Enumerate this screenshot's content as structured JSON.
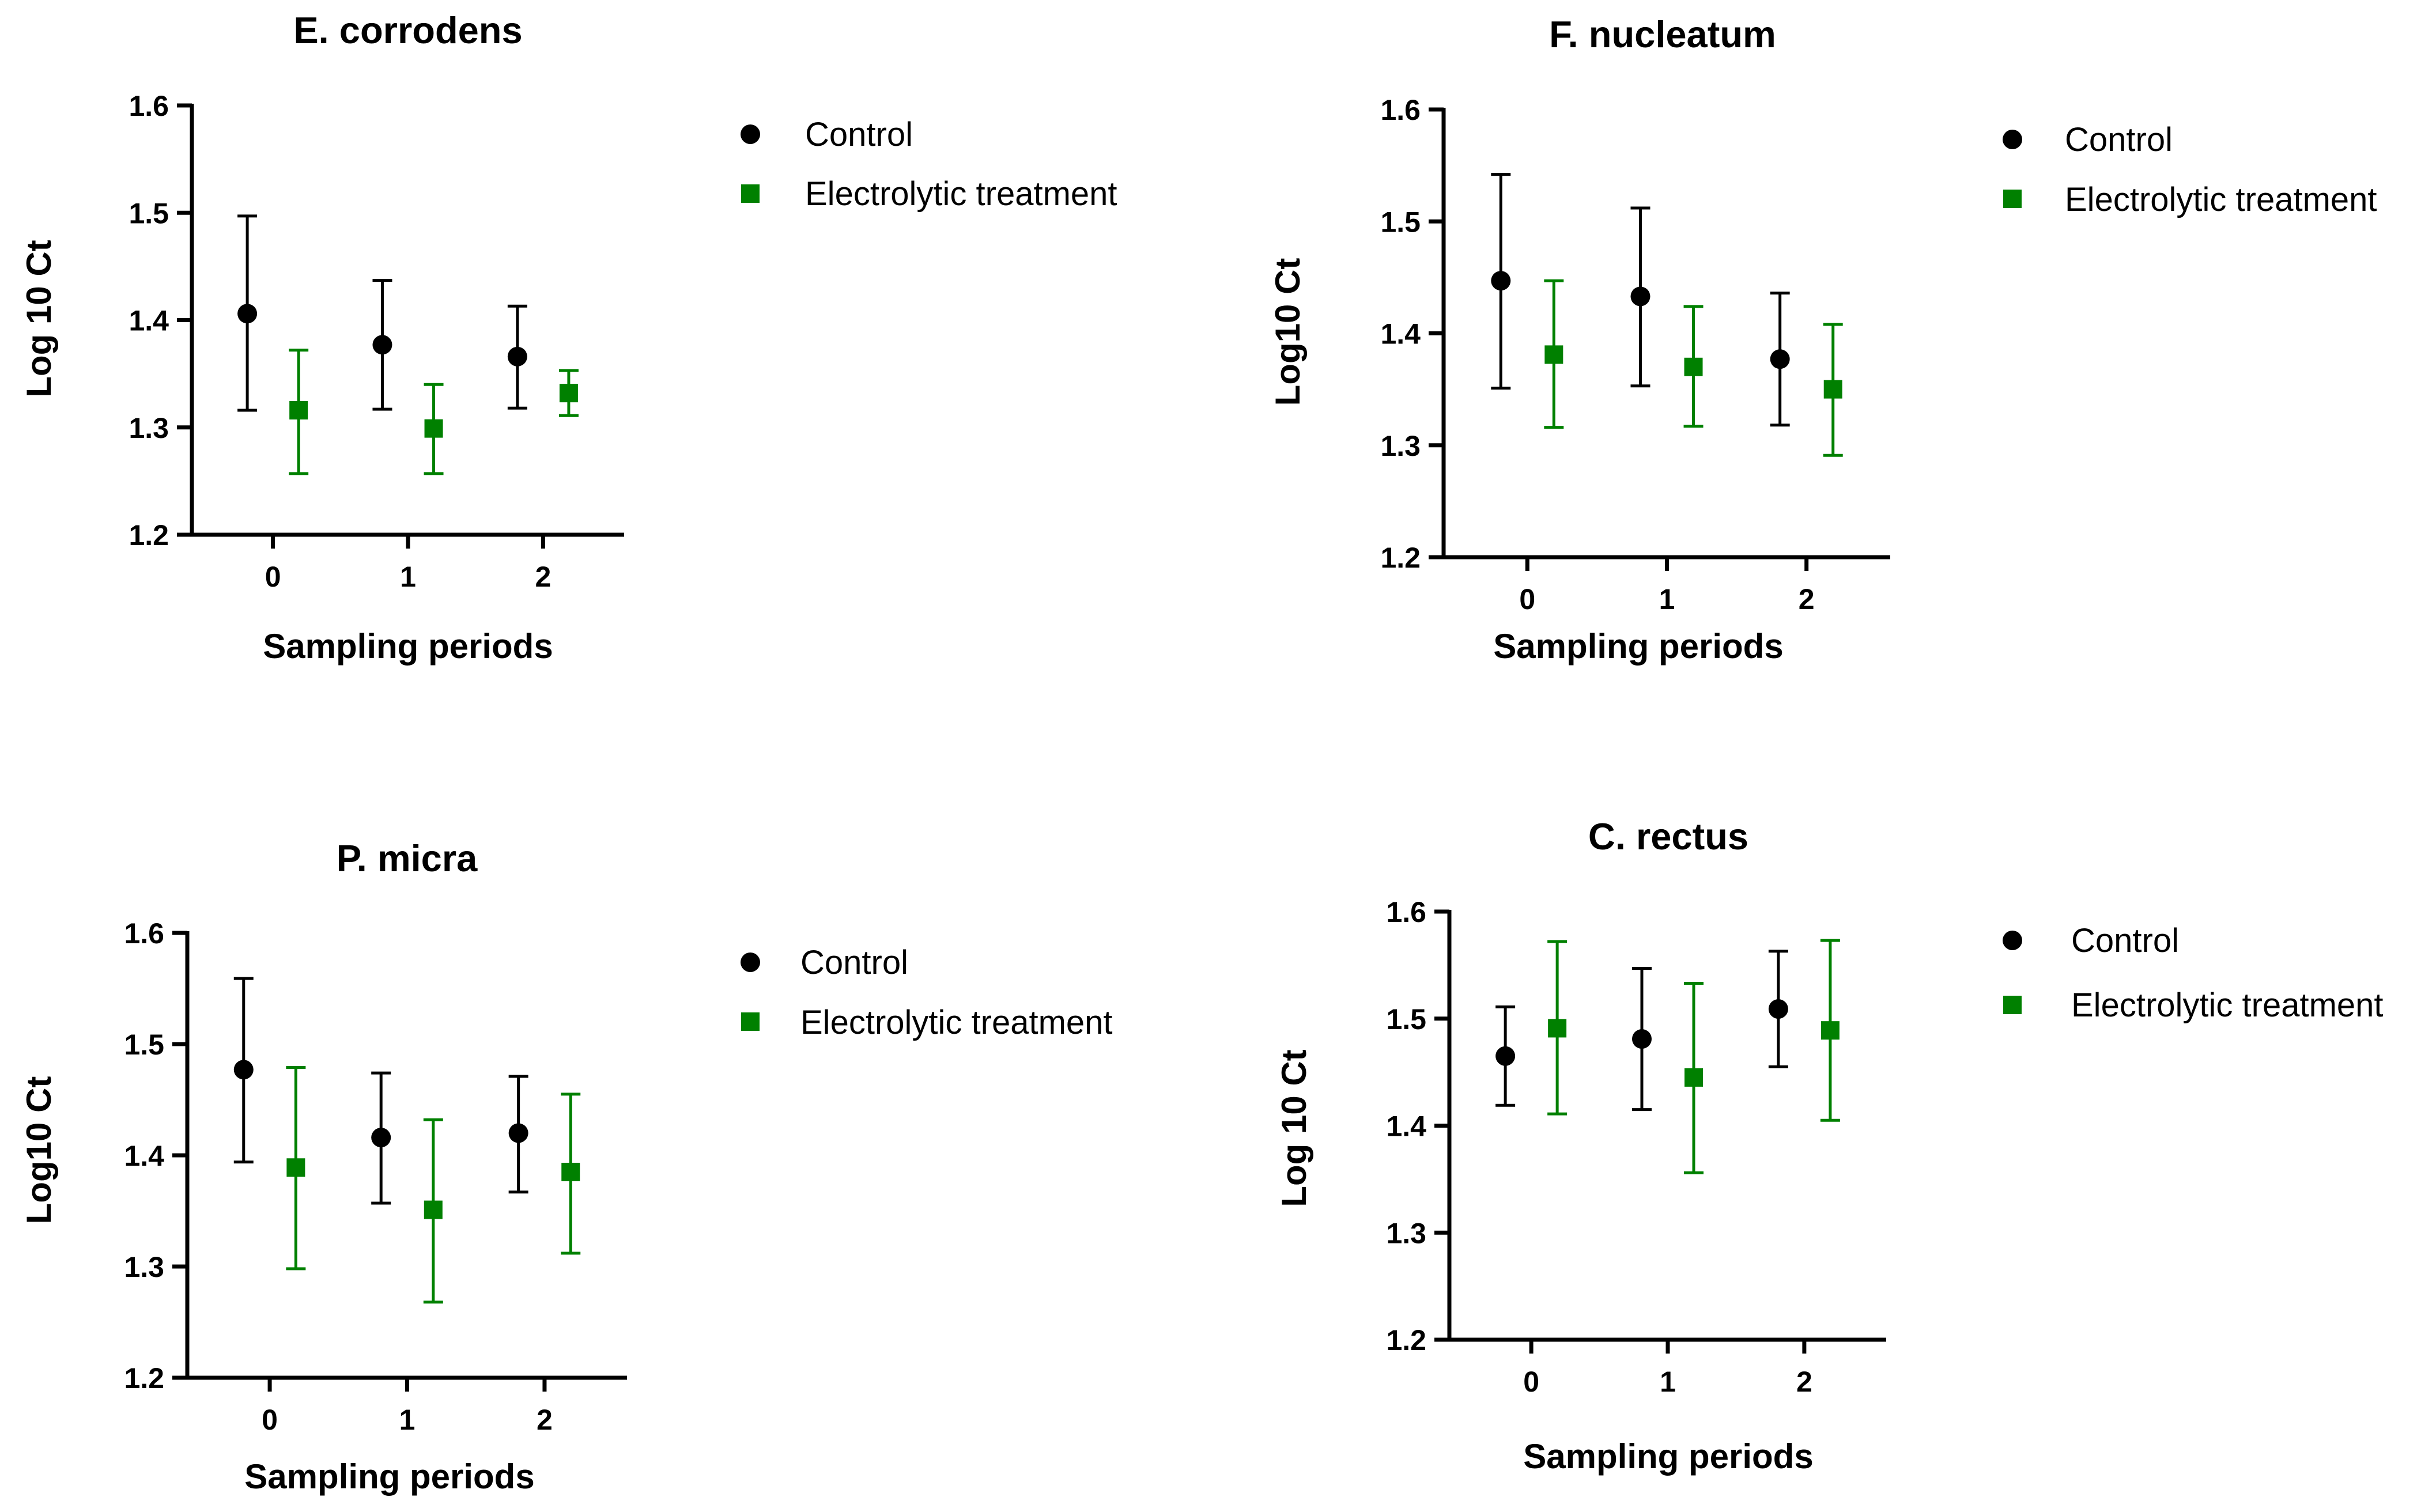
{
  "colors": {
    "control": "#000000",
    "treatment": "#008000"
  },
  "chart_data": [
    {
      "type": "scatter",
      "title": "E. corrodens",
      "xlabel": "Sampling periods",
      "ylabel": "Log 10 Ct",
      "ylim": [
        1.2,
        1.6
      ],
      "yticks": [
        "1.2",
        "1.3",
        "1.4",
        "1.5",
        "1.6"
      ],
      "categories": [
        "0",
        "1",
        "2"
      ],
      "legend": [
        "Control",
        "Electrolytic treatment"
      ],
      "legend_position": "right",
      "series": [
        {
          "name": "Control",
          "marker": "circle",
          "color": "#000000",
          "values": [
            1.406,
            1.377,
            1.366
          ],
          "err_low": [
            1.316,
            1.317,
            1.318
          ],
          "err_high": [
            1.497,
            1.437,
            1.413
          ]
        },
        {
          "name": "Electrolytic treatment",
          "marker": "square",
          "color": "#008000",
          "values": [
            1.316,
            1.299,
            1.332
          ],
          "err_low": [
            1.257,
            1.257,
            1.311
          ],
          "err_high": [
            1.372,
            1.34,
            1.353
          ]
        }
      ]
    },
    {
      "type": "scatter",
      "title": "F. nucleatum",
      "xlabel": "Sampling periods",
      "ylabel": "Log10 Ct",
      "ylim": [
        1.2,
        1.6
      ],
      "yticks": [
        "1.2",
        "1.3",
        "1.4",
        "1.5",
        "1.6"
      ],
      "categories": [
        "0",
        "1",
        "2"
      ],
      "legend": [
        "Control",
        "Electrolytic treatment"
      ],
      "legend_position": "right",
      "series": [
        {
          "name": "Control",
          "marker": "circle",
          "color": "#000000",
          "values": [
            1.447,
            1.433,
            1.377
          ],
          "err_low": [
            1.351,
            1.353,
            1.318
          ],
          "err_high": [
            1.542,
            1.512,
            1.436
          ]
        },
        {
          "name": "Electrolytic treatment",
          "marker": "square",
          "color": "#008000",
          "values": [
            1.381,
            1.37,
            1.35
          ],
          "err_low": [
            1.316,
            1.317,
            1.291
          ],
          "err_high": [
            1.447,
            1.424,
            1.408
          ]
        }
      ]
    },
    {
      "type": "scatter",
      "title": "P. micra",
      "xlabel": "Sampling periods",
      "ylabel": "Log10 Ct",
      "ylim": [
        1.2,
        1.6
      ],
      "yticks": [
        "1.2",
        "1.3",
        "1.4",
        "1.5",
        "1.6"
      ],
      "categories": [
        "0",
        "1",
        "2"
      ],
      "legend": [
        "Control",
        "Electrolytic treatment"
      ],
      "legend_position": "right",
      "series": [
        {
          "name": "Control",
          "marker": "circle",
          "color": "#000000",
          "values": [
            1.477,
            1.416,
            1.42
          ],
          "err_low": [
            1.394,
            1.357,
            1.367
          ],
          "err_high": [
            1.559,
            1.474,
            1.471
          ]
        },
        {
          "name": "Electrolytic treatment",
          "marker": "square",
          "color": "#008000",
          "values": [
            1.389,
            1.351,
            1.385
          ],
          "err_low": [
            1.298,
            1.268,
            1.312
          ],
          "err_high": [
            1.479,
            1.432,
            1.455
          ]
        }
      ]
    },
    {
      "type": "scatter",
      "title": "C. rectus",
      "xlabel": "Sampling periods",
      "ylabel": "Log 10 Ct",
      "ylim": [
        1.2,
        1.6
      ],
      "yticks": [
        "1.2",
        "1.3",
        "1.4",
        "1.5",
        "1.6"
      ],
      "categories": [
        "0",
        "1",
        "2"
      ],
      "legend": [
        "Control",
        "Electrolytic treatment"
      ],
      "legend_position": "right",
      "series": [
        {
          "name": "Control",
          "marker": "circle",
          "color": "#000000",
          "values": [
            1.465,
            1.481,
            1.509
          ],
          "err_low": [
            1.419,
            1.415,
            1.455
          ],
          "err_high": [
            1.511,
            1.547,
            1.563
          ]
        },
        {
          "name": "Electrolytic treatment",
          "marker": "square",
          "color": "#008000",
          "values": [
            1.491,
            1.445,
            1.489
          ],
          "err_low": [
            1.411,
            1.356,
            1.405
          ],
          "err_high": [
            1.572,
            1.533,
            1.573
          ]
        }
      ]
    }
  ]
}
